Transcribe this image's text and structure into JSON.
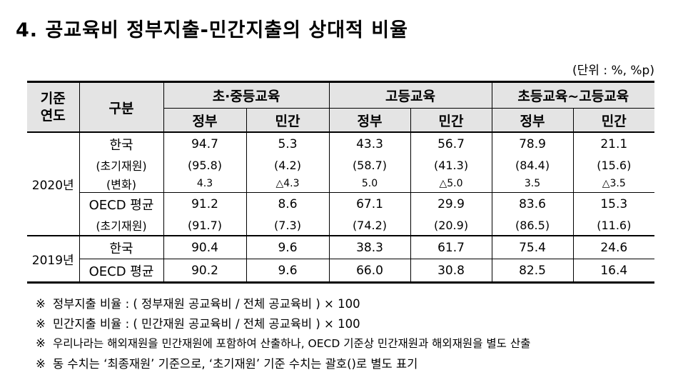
{
  "title": "4. 공교육비 정부지출-민간지출의 상대적 비율",
  "unit": "(단위 : %, %p)",
  "header": {
    "year_col": "기준 연도",
    "year_col_line1": "기준",
    "year_col_line2": "연도",
    "category_col": "구분",
    "groups": [
      "초·중등교육",
      "고등교육",
      "초등교육~고등교육"
    ],
    "sub": [
      "정부",
      "민간",
      "정부",
      "민간",
      "정부",
      "민간"
    ]
  },
  "rows": {
    "y2020": {
      "year": "2020년",
      "korea": {
        "label": "한국",
        "values": [
          "94.7",
          "5.3",
          "43.3",
          "56.7",
          "78.9",
          "21.1"
        ],
        "initial_label": "(초기재원)",
        "initial": [
          "(95.8)",
          "(4.2)",
          "(58.7)",
          "(41.3)",
          "(84.4)",
          "(15.6)"
        ],
        "change_label": "(변화)",
        "change": [
          "4.3",
          "△4.3",
          "5.0",
          "△5.0",
          "3.5",
          "△3.5"
        ]
      },
      "oecd": {
        "label": "OECD 평균",
        "values": [
          "91.2",
          "8.6",
          "67.1",
          "29.9",
          "83.6",
          "15.3"
        ],
        "initial_label": "(초기재원)",
        "initial": [
          "(91.7)",
          "(7.3)",
          "(74.2)",
          "(20.9)",
          "(86.5)",
          "(11.6)"
        ]
      }
    },
    "y2019": {
      "year": "2019년",
      "korea": {
        "label": "한국",
        "values": [
          "90.4",
          "9.6",
          "38.3",
          "61.7",
          "75.4",
          "24.6"
        ]
      },
      "oecd": {
        "label": "OECD 평균",
        "values": [
          "90.2",
          "9.6",
          "66.0",
          "30.8",
          "82.5",
          "16.4"
        ]
      }
    }
  },
  "notes": [
    "정부지출 비율 : ( 정부재원 공교육비 / 전체 공교육비 ) × 100",
    "민간지출 비율 : ( 민간재원 공교육비 / 전체 공교육비 ) × 100",
    "우리나라는 해외재원을 민간재원에 포함하여 산출하나, OECD 기준상 민간재원과 해외재원을 별도 산출",
    "동 수치는 ‘최종재원’ 기준으로, ‘초기재원’ 기준 수치는 괄호()로 별도 표기"
  ],
  "note_mark": "※"
}
